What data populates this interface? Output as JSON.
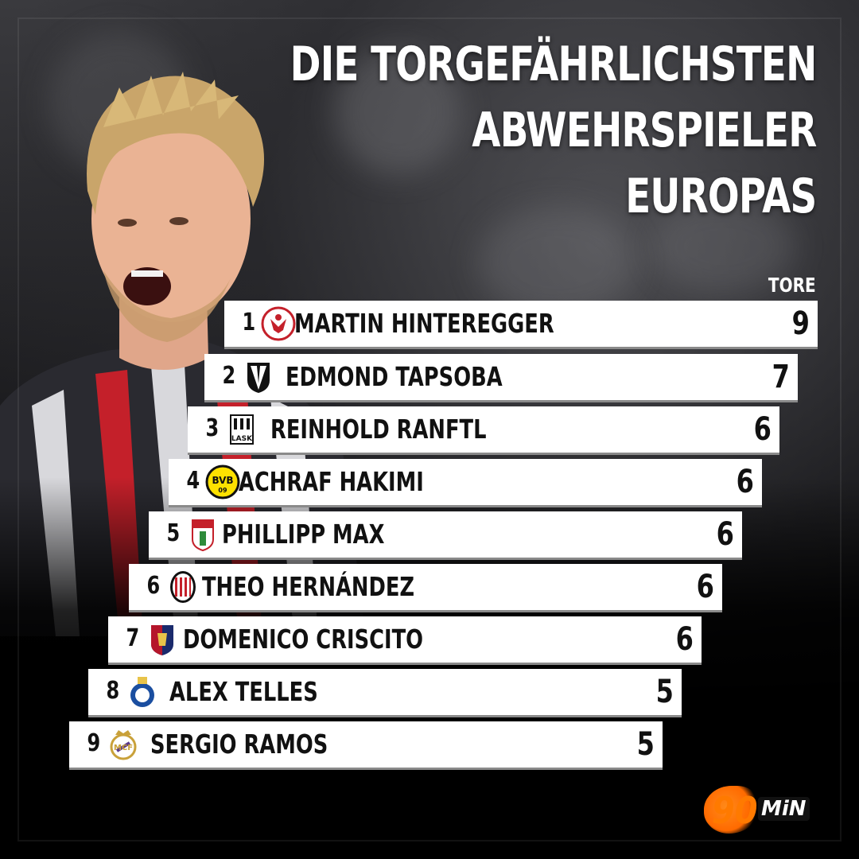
{
  "title": {
    "line1": "DIE TORGEFÄHRLICHSTEN",
    "line2": "ABWEHRSPIELER",
    "line3": "EUROPAS"
  },
  "column_label": "TORE",
  "ranking": [
    {
      "rank": "1.",
      "player": "MARTIN HINTEREGGER",
      "goals": "9",
      "club_crest": "eintracht-frankfurt-crest"
    },
    {
      "rank": "2.",
      "player": "EDMOND TAPSOBA",
      "goals": "7",
      "club_crest": "vitoria-guimaraes-crest"
    },
    {
      "rank": "3.",
      "player": "REINHOLD RANFTL",
      "goals": "6",
      "club_crest": "lask-crest"
    },
    {
      "rank": "4.",
      "player": "ACHRAF HAKIMI",
      "goals": "6",
      "club_crest": "bvb-crest"
    },
    {
      "rank": "5.",
      "player": "PHILLIPP MAX",
      "goals": "6",
      "club_crest": "fc-augsburg-crest"
    },
    {
      "rank": "6.",
      "player": "THEO HERNÁNDEZ",
      "goals": "6",
      "club_crest": "ac-milan-crest"
    },
    {
      "rank": "7.",
      "player": "DOMENICO CRISCITO",
      "goals": "6",
      "club_crest": "genoa-crest"
    },
    {
      "rank": "8.",
      "player": "ALEX TELLES",
      "goals": "5",
      "club_crest": "fc-porto-crest"
    },
    {
      "rank": "9.",
      "player": "SERGIO RAMOS",
      "goals": "5",
      "club_crest": "real-madrid-crest"
    }
  ],
  "logo": {
    "number": "90",
    "text": "MiN"
  },
  "colors": {
    "bar_fill": "#ffffff",
    "text": "#111111",
    "accent_orange": "#ff7a00"
  }
}
